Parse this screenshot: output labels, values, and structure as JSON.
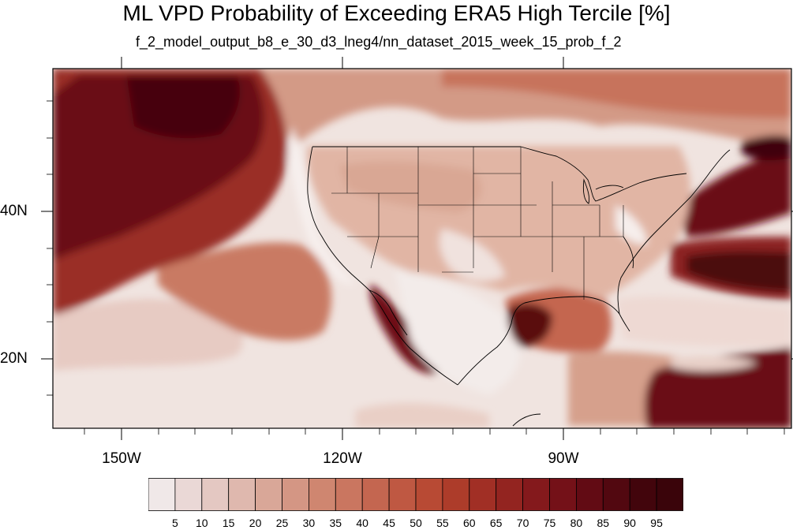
{
  "title": "ML VPD Probability of Exceeding ERA5 High Tercile [%]",
  "subtitle": "f_2_model_output_b8_e_30_d3_lneg4/nn_dataset_2015_week_15_prob_f_2",
  "map": {
    "projection": "cylindrical-equidistant",
    "region": "North Pacific / North America / western Atlantic",
    "lat_labels": [
      "40N",
      "20N"
    ],
    "lon_labels": [
      "150W",
      "120W",
      "90W"
    ],
    "colors": {
      "coast": "#000000",
      "background_ocean": "#f0e6e4",
      "land": "#e2b8a6"
    }
  },
  "colorbar": {
    "labels": [
      "5",
      "10",
      "15",
      "20",
      "25",
      "30",
      "35",
      "40",
      "45",
      "50",
      "55",
      "60",
      "65",
      "70",
      "75",
      "80",
      "85",
      "90",
      "95"
    ],
    "colors": [
      "#f0e8e8",
      "#ead8d6",
      "#e4c8c2",
      "#dfb8ae",
      "#d9a798",
      "#d49684",
      "#cf8670",
      "#ca7660",
      "#c46650",
      "#bf5842",
      "#b84a34",
      "#ad3c2a",
      "#a12f25",
      "#932420",
      "#84191c",
      "#741118",
      "#620b14",
      "#520810",
      "#42050c"
    ]
  }
}
